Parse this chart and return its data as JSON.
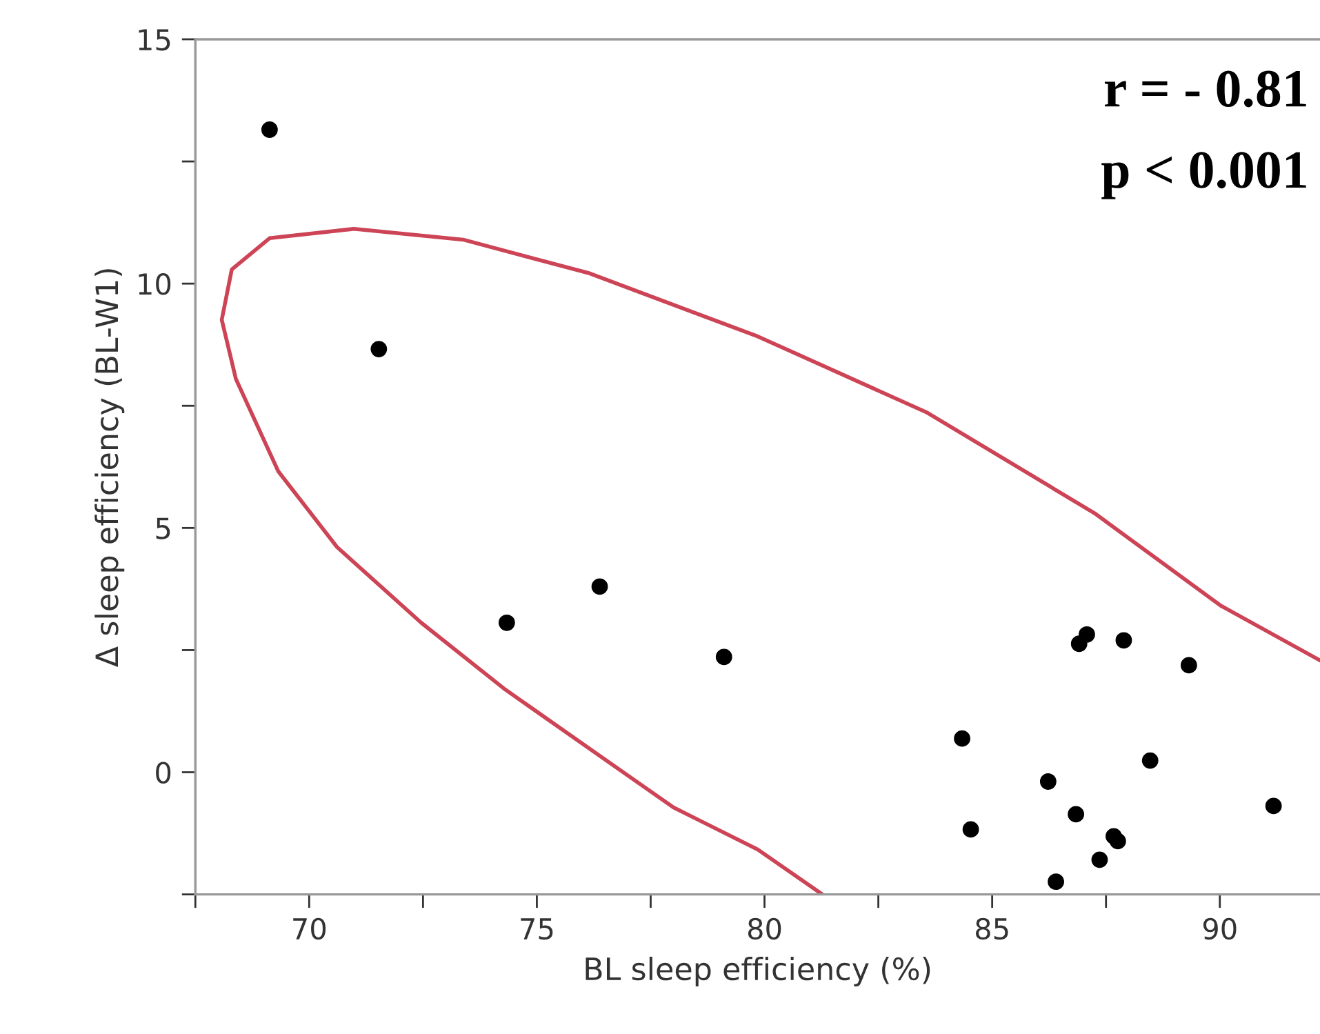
{
  "chart_data": {
    "type": "scatter",
    "xlabel": "BL sleep efficiency (%)",
    "ylabel": "Δ sleep efficiency (BL-W1)",
    "xlim": [
      67.5,
      92.2
    ],
    "ylim": [
      -2.5,
      15
    ],
    "xticks": [
      70,
      75,
      80,
      85,
      90
    ],
    "yticks": [
      0,
      5,
      10,
      15
    ],
    "grid": false,
    "marker": "circle",
    "series": [
      {
        "color": "#000000",
        "x": [
          69.13,
          71.53,
          74.34,
          76.38,
          79.11,
          84.34,
          84.53,
          86.23,
          86.4,
          86.84,
          86.91,
          87.08,
          87.36,
          87.67,
          87.76,
          87.89,
          88.47,
          89.32,
          91.18
        ],
        "values": [
          13.15,
          8.66,
          3.06,
          3.8,
          2.36,
          0.69,
          -1.17,
          -0.19,
          -2.24,
          -0.86,
          2.63,
          2.82,
          -1.79,
          -1.31,
          -1.41,
          2.7,
          0.24,
          2.19,
          -0.69
        ]
      },
      {
        "type": "line",
        "color": "#cc4455",
        "marker": "none",
        "x": [
          81.24,
          79.85,
          78.0,
          76.16,
          74.31,
          72.46,
          70.61,
          69.32,
          68.39,
          68.08,
          68.3,
          69.13,
          70.98,
          73.38,
          76.16,
          79.85,
          83.55,
          87.25,
          90.02,
          92.2
        ],
        "values": [
          -2.48,
          -1.58,
          -0.72,
          0.48,
          1.69,
          3.06,
          4.61,
          6.16,
          8.05,
          9.26,
          10.29,
          10.93,
          11.12,
          10.9,
          10.21,
          8.92,
          7.37,
          5.3,
          3.41,
          2.29
        ]
      }
    ],
    "annotations": [
      "r = - 0.81",
      "p < 0.001"
    ]
  }
}
